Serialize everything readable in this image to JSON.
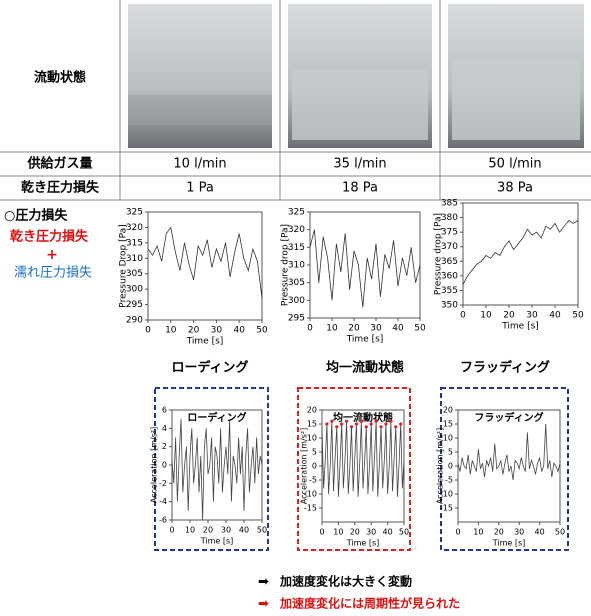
{
  "table": {
    "rows": [
      [
        "流動状態"
      ],
      [
        "供給ガス量",
        "10 l/min",
        "35 l/min",
        "50 l/min"
      ],
      [
        "乾き圧力損失",
        "1 Pa",
        "18 Pa",
        "38 Pa"
      ]
    ]
  },
  "legend_text": {
    "title": "○圧力損失",
    "dry": "乾き圧力損失",
    "plus": "+",
    "wet": "濡れ圧力損失"
  },
  "section_headings": [
    "ローディング",
    "均一流動状態",
    "フラッディング"
  ],
  "conclusions": [
    "加速度変化は大きく変動",
    "加速度変化には周期性が見られた"
  ],
  "chart_data": [
    {
      "type": "line",
      "xlabel": "Time [s]",
      "ylabel": "Pressure Drop [Pa]",
      "x": [
        0,
        2,
        4,
        6,
        8,
        10,
        12,
        14,
        16,
        18,
        20,
        22,
        24,
        26,
        28,
        30,
        32,
        34,
        36,
        38,
        40,
        42,
        44,
        46,
        48,
        50
      ],
      "series": [
        {
          "color": "#333333",
          "values": [
            313,
            311,
            314,
            309,
            318,
            320,
            312,
            306,
            315,
            308,
            303,
            314,
            311,
            316,
            307,
            313,
            309,
            315,
            304,
            312,
            318,
            310,
            306,
            313,
            309,
            297
          ]
        }
      ],
      "xlim": [
        0,
        50
      ],
      "ylim": [
        290,
        325
      ],
      "xticks": [
        0,
        10,
        20,
        30,
        40,
        50
      ],
      "yticks": [
        290,
        295,
        300,
        305,
        310,
        315,
        320,
        325
      ]
    },
    {
      "type": "line",
      "xlabel": "Time [s]",
      "ylabel": "Pressure drop [Pa]",
      "x": [
        0,
        2,
        4,
        6,
        8,
        10,
        12,
        14,
        16,
        18,
        20,
        22,
        24,
        26,
        28,
        30,
        32,
        34,
        36,
        38,
        40,
        42,
        44,
        46,
        48,
        50
      ],
      "series": [
        {
          "color": "#333333",
          "values": [
            315,
            320,
            305,
            318,
            312,
            300,
            316,
            308,
            319,
            303,
            314,
            310,
            298,
            312,
            306,
            316,
            301,
            313,
            309,
            317,
            304,
            312,
            307,
            315,
            305,
            310
          ]
        }
      ],
      "xlim": [
        0,
        50
      ],
      "ylim": [
        295,
        325
      ],
      "xticks": [
        0,
        10,
        20,
        30,
        40,
        50
      ],
      "yticks": [
        295,
        300,
        305,
        310,
        315,
        320,
        325
      ]
    },
    {
      "type": "line",
      "xlabel": "Time [s]",
      "ylabel": "Pressure drop [Pa]",
      "x": [
        0,
        2,
        4,
        6,
        8,
        10,
        12,
        14,
        16,
        18,
        20,
        22,
        24,
        26,
        28,
        30,
        32,
        34,
        36,
        38,
        40,
        42,
        44,
        46,
        48,
        50
      ],
      "series": [
        {
          "color": "#333333",
          "values": [
            357,
            360,
            362,
            364,
            365,
            367,
            366,
            368,
            367,
            370,
            372,
            369,
            371,
            373,
            376,
            374,
            375,
            373,
            377,
            376,
            378,
            375,
            377,
            379,
            378,
            379
          ]
        }
      ],
      "xlim": [
        0,
        50
      ],
      "ylim": [
        350,
        385
      ],
      "xticks": [
        0,
        10,
        20,
        30,
        40,
        50
      ],
      "yticks": [
        350,
        355,
        360,
        365,
        370,
        375,
        380,
        385
      ]
    },
    {
      "type": "line",
      "title": "ローディング",
      "xlabel": "Time [s]",
      "ylabel": "Acceleration [m/s²]",
      "x": [
        0,
        1,
        2,
        3,
        4,
        5,
        6,
        7,
        8,
        9,
        10,
        11,
        12,
        13,
        14,
        15,
        16,
        17,
        18,
        19,
        20,
        21,
        22,
        23,
        24,
        25,
        26,
        27,
        28,
        29,
        30,
        31,
        32,
        33,
        34,
        35,
        36,
        37,
        38,
        39,
        40,
        41,
        42,
        43,
        44,
        45,
        46,
        47,
        48,
        49,
        50
      ],
      "series": [
        {
          "color": "#444444",
          "values": [
            0.5,
            -2,
            3,
            -4,
            1,
            5,
            -3,
            0,
            2,
            -5,
            1,
            4,
            -2,
            0,
            3,
            -3,
            1,
            -6,
            2,
            4,
            -1,
            0,
            3,
            -4,
            2,
            1,
            -2,
            4,
            -3,
            0,
            2,
            -1,
            5,
            -4,
            1,
            0,
            -2,
            3,
            -1,
            2,
            -5,
            1,
            4,
            -3,
            0,
            2,
            -2,
            3,
            -1,
            1,
            0
          ]
        }
      ],
      "xlim": [
        0,
        50
      ],
      "ylim": [
        -6,
        6
      ],
      "xticks": [
        0,
        10,
        20,
        30,
        40,
        50
      ],
      "yticks": [
        -6,
        -4,
        -2,
        0,
        2,
        4,
        6
      ]
    },
    {
      "type": "line",
      "title": "均一流動状態",
      "xlabel": "Time [s]",
      "ylabel": "Acceleration [m/s²]",
      "peak_markers": "#e02020",
      "x": [
        0,
        1,
        2,
        3,
        4,
        5,
        6,
        7,
        8,
        9,
        10,
        11,
        12,
        13,
        14,
        15,
        16,
        17,
        18,
        19,
        20,
        21,
        22,
        23,
        24,
        25,
        26,
        27,
        28,
        29,
        30,
        31,
        32,
        33,
        34,
        35,
        36,
        37,
        38,
        39,
        40,
        41,
        42,
        43,
        44,
        45,
        46,
        47,
        48,
        49,
        50
      ],
      "series": [
        {
          "color": "#444444",
          "values": [
            14,
            -8,
            2,
            15,
            -10,
            0,
            16,
            -9,
            3,
            14,
            -11,
            1,
            15,
            -8,
            2,
            16,
            -10,
            0,
            14,
            -9,
            3,
            15,
            -11,
            1,
            16,
            -8,
            2,
            14,
            -10,
            0,
            15,
            -9,
            3,
            16,
            -11,
            1,
            14,
            -8,
            2,
            15,
            -10,
            0,
            16,
            -9,
            3,
            14,
            -11,
            1,
            15,
            -8,
            2
          ]
        }
      ],
      "xlim": [
        0,
        50
      ],
      "ylim": [
        -20,
        20
      ],
      "xticks": [
        0,
        10,
        20,
        30,
        40,
        50
      ],
      "yticks": [
        -15,
        -10,
        -5,
        0,
        5,
        10,
        15,
        20
      ]
    },
    {
      "type": "line",
      "title": "フラッディング",
      "xlabel": "Time [s]",
      "ylabel": "Acceleration [m/s²]",
      "x": [
        0,
        1,
        2,
        3,
        4,
        5,
        6,
        7,
        8,
        9,
        10,
        11,
        12,
        13,
        14,
        15,
        16,
        17,
        18,
        19,
        20,
        21,
        22,
        23,
        24,
        25,
        26,
        27,
        28,
        29,
        30,
        31,
        32,
        33,
        34,
        35,
        36,
        37,
        38,
        39,
        40,
        41,
        42,
        43,
        44,
        45,
        46,
        47,
        48,
        49,
        50
      ],
      "series": [
        {
          "color": "#444444",
          "values": [
            1,
            -2,
            3,
            0,
            -1,
            4,
            -3,
            2,
            0,
            -2,
            6,
            -1,
            1,
            -4,
            2,
            0,
            3,
            -2,
            8,
            -1,
            0,
            2,
            -3,
            1,
            4,
            -2,
            0,
            -5,
            2,
            1,
            -1,
            3,
            0,
            -2,
            12,
            -1,
            2,
            0,
            -3,
            1,
            3,
            -2,
            0,
            15,
            -1,
            2,
            -4,
            1,
            0,
            -2,
            1
          ]
        }
      ],
      "xlim": [
        0,
        50
      ],
      "ylim": [
        -20,
        20
      ],
      "xticks": [
        0,
        10,
        20,
        30,
        40,
        50
      ],
      "yticks": [
        -15,
        -10,
        -5,
        0,
        5,
        10,
        15,
        20
      ]
    }
  ]
}
